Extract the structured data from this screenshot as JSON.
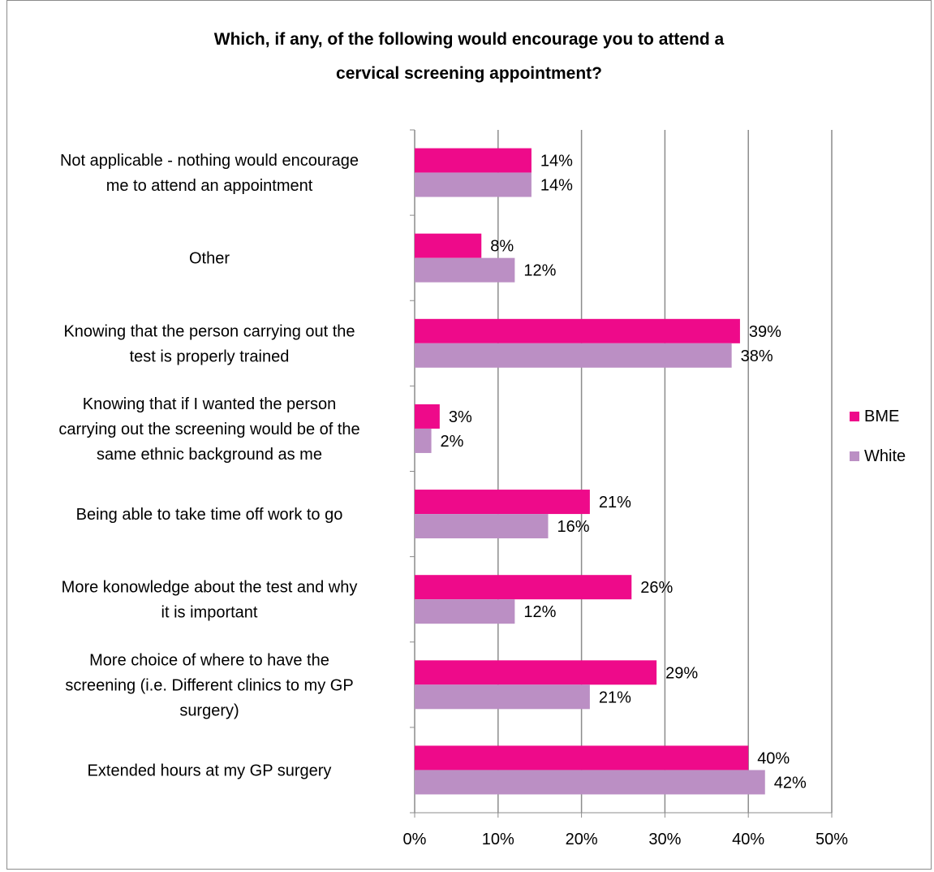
{
  "chart_data": {
    "type": "bar",
    "orientation": "horizontal",
    "title_lines": [
      "Which, if any, of the following would encourage you to attend a",
      "cervical screening appointment?"
    ],
    "categories": [
      [
        "Not applicable - nothing would encourage",
        "me to attend an appointment"
      ],
      [
        "Other"
      ],
      [
        "Knowing that the person carrying out the",
        "test is properly trained"
      ],
      [
        "Knowing that if I wanted the person",
        "carrying out the screening would be of the",
        "same ethnic background as me"
      ],
      [
        "Being able to take time off work to go"
      ],
      [
        "More konowledge about the test and why",
        "it is important"
      ],
      [
        "More choice of where to have the",
        "screening (i.e. Different clinics to my GP",
        "surgery)"
      ],
      [
        "Extended hours at my GP surgery"
      ]
    ],
    "series": [
      {
        "name": "BME",
        "color": "#ee0a8a",
        "values": [
          14,
          8,
          39,
          3,
          21,
          26,
          29,
          40
        ],
        "labels": [
          "14%",
          "8%",
          "39%",
          "3%",
          "21%",
          "26%",
          "29%",
          "40%"
        ]
      },
      {
        "name": "White",
        "color": "#bb8fc4",
        "values": [
          14,
          12,
          38,
          2,
          16,
          12,
          21,
          42
        ],
        "labels": [
          "14%",
          "12%",
          "38%",
          "2%",
          "16%",
          "12%",
          "21%",
          "42%"
        ]
      }
    ],
    "x_ticks": [
      "0%",
      "10%",
      "20%",
      "30%",
      "40%",
      "50%"
    ],
    "xlim": [
      0,
      50
    ],
    "grid": true,
    "legend_position": "right"
  }
}
